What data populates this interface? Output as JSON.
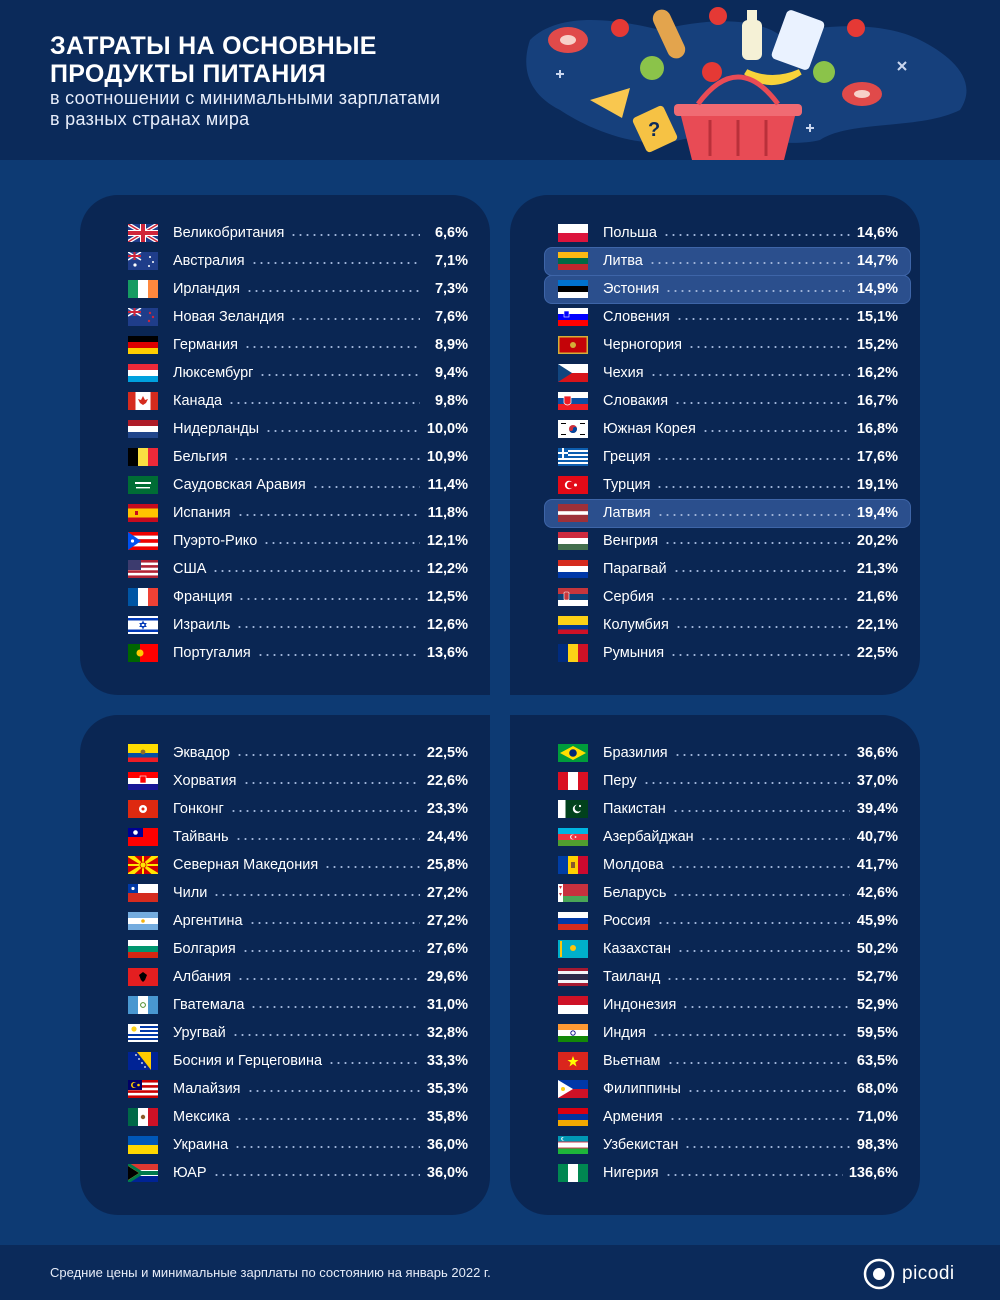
{
  "header": {
    "title": "ЗАТРАТЫ НА ОСНОВНЫЕ\nПРОДУКТЫ ПИТАНИЯ",
    "subtitle": "в соотношении с минимальными зарплатами\nв разных странах мира"
  },
  "footer": {
    "note": "Средние цены и минимальные зарплаты по состоянию на январь 2022 г.",
    "logo": "picodi"
  },
  "colors": {
    "background": "#0d3a73",
    "panel": "#0a2653",
    "header": "#0b2a5a",
    "highlight": "#2b4f8d"
  },
  "chart_data": {
    "type": "table",
    "title": "ЗАТРАТЫ НА ОСНОВНЫЕ ПРОДУКТЫ ПИТАНИЯ",
    "columns": [
      [
        {
          "country": "Великобритания",
          "value": "6,6%",
          "flag": "gb"
        },
        {
          "country": "Австралия",
          "value": "7,1%",
          "flag": "au"
        },
        {
          "country": "Ирландия",
          "value": "7,3%",
          "flag": "ie"
        },
        {
          "country": "Новая Зеландия",
          "value": "7,6%",
          "flag": "nz"
        },
        {
          "country": "Германия",
          "value": "8,9%",
          "flag": "de"
        },
        {
          "country": "Люксембург",
          "value": "9,4%",
          "flag": "lu"
        },
        {
          "country": "Канада",
          "value": "9,8%",
          "flag": "ca"
        },
        {
          "country": "Нидерланды",
          "value": "10,0%",
          "flag": "nl"
        },
        {
          "country": "Бельгия",
          "value": "10,9%",
          "flag": "be"
        },
        {
          "country": "Саудовская Аравия",
          "value": "11,4%",
          "flag": "sa"
        },
        {
          "country": "Испания",
          "value": "11,8%",
          "flag": "es"
        },
        {
          "country": "Пуэрто-Рико",
          "value": "12,1%",
          "flag": "pr"
        },
        {
          "country": "США",
          "value": "12,2%",
          "flag": "us"
        },
        {
          "country": "Франция",
          "value": "12,5%",
          "flag": "fr"
        },
        {
          "country": "Израиль",
          "value": "12,6%",
          "flag": "il"
        },
        {
          "country": "Португалия",
          "value": "13,6%",
          "flag": "pt"
        }
      ],
      [
        {
          "country": "Польша",
          "value": "14,6%",
          "flag": "pl"
        },
        {
          "country": "Литва",
          "value": "14,7%",
          "flag": "lt",
          "highlight": true
        },
        {
          "country": "Эстония",
          "value": "14,9%",
          "flag": "ee",
          "highlight": true
        },
        {
          "country": "Словения",
          "value": "15,1%",
          "flag": "si"
        },
        {
          "country": "Черногория",
          "value": "15,2%",
          "flag": "me"
        },
        {
          "country": "Чехия",
          "value": "16,2%",
          "flag": "cz"
        },
        {
          "country": "Словакия",
          "value": "16,7%",
          "flag": "sk"
        },
        {
          "country": "Южная Корея",
          "value": "16,8%",
          "flag": "kr"
        },
        {
          "country": "Греция",
          "value": "17,6%",
          "flag": "gr"
        },
        {
          "country": "Турция",
          "value": "19,1%",
          "flag": "tr"
        },
        {
          "country": "Латвия",
          "value": "19,4%",
          "flag": "lv",
          "highlight": true
        },
        {
          "country": "Венгрия",
          "value": "20,2%",
          "flag": "hu"
        },
        {
          "country": "Парагвай",
          "value": "21,3%",
          "flag": "py"
        },
        {
          "country": "Сербия",
          "value": "21,6%",
          "flag": "rs"
        },
        {
          "country": "Колумбия",
          "value": "22,1%",
          "flag": "co"
        },
        {
          "country": "Румыния",
          "value": "22,5%",
          "flag": "ro"
        }
      ],
      [
        {
          "country": "Эквадор",
          "value": "22,5%",
          "flag": "ec"
        },
        {
          "country": "Хорватия",
          "value": "22,6%",
          "flag": "hr"
        },
        {
          "country": "Гонконг",
          "value": "23,3%",
          "flag": "hk"
        },
        {
          "country": "Тайвань",
          "value": "24,4%",
          "flag": "tw"
        },
        {
          "country": "Северная Македония",
          "value": "25,8%",
          "flag": "mk"
        },
        {
          "country": "Чили",
          "value": "27,2%",
          "flag": "cl"
        },
        {
          "country": "Аргентина",
          "value": "27,2%",
          "flag": "ar"
        },
        {
          "country": "Болгария",
          "value": "27,6%",
          "flag": "bg"
        },
        {
          "country": "Албания",
          "value": "29,6%",
          "flag": "al"
        },
        {
          "country": "Гватемала",
          "value": "31,0%",
          "flag": "gt"
        },
        {
          "country": "Уругвай",
          "value": "32,8%",
          "flag": "uy"
        },
        {
          "country": "Босния и Герцеговина",
          "value": "33,3%",
          "flag": "ba"
        },
        {
          "country": "Малайзия",
          "value": "35,3%",
          "flag": "my"
        },
        {
          "country": "Мексика",
          "value": "35,8%",
          "flag": "mx"
        },
        {
          "country": "Украина",
          "value": "36,0%",
          "flag": "ua"
        },
        {
          "country": "ЮАР",
          "value": "36,0%",
          "flag": "za"
        }
      ],
      [
        {
          "country": "Бразилия",
          "value": "36,6%",
          "flag": "br"
        },
        {
          "country": "Перу",
          "value": "37,0%",
          "flag": "pe"
        },
        {
          "country": "Пакистан",
          "value": "39,4%",
          "flag": "pk"
        },
        {
          "country": "Азербайджан",
          "value": "40,7%",
          "flag": "az"
        },
        {
          "country": "Молдова",
          "value": "41,7%",
          "flag": "md"
        },
        {
          "country": "Беларусь",
          "value": "42,6%",
          "flag": "by"
        },
        {
          "country": "Россия",
          "value": "45,9%",
          "flag": "ru"
        },
        {
          "country": "Казахстан",
          "value": "50,2%",
          "flag": "kz"
        },
        {
          "country": "Таиланд",
          "value": "52,7%",
          "flag": "th"
        },
        {
          "country": "Индонезия",
          "value": "52,9%",
          "flag": "id"
        },
        {
          "country": "Индия",
          "value": "59,5%",
          "flag": "in"
        },
        {
          "country": "Вьетнам",
          "value": "63,5%",
          "flag": "vn"
        },
        {
          "country": "Филиппины",
          "value": "68,0%",
          "flag": "ph"
        },
        {
          "country": "Армения",
          "value": "71,0%",
          "flag": "am"
        },
        {
          "country": "Узбекистан",
          "value": "98,3%",
          "flag": "uz"
        },
        {
          "country": "Нигерия",
          "value": "136,6%",
          "flag": "ng"
        }
      ]
    ]
  }
}
